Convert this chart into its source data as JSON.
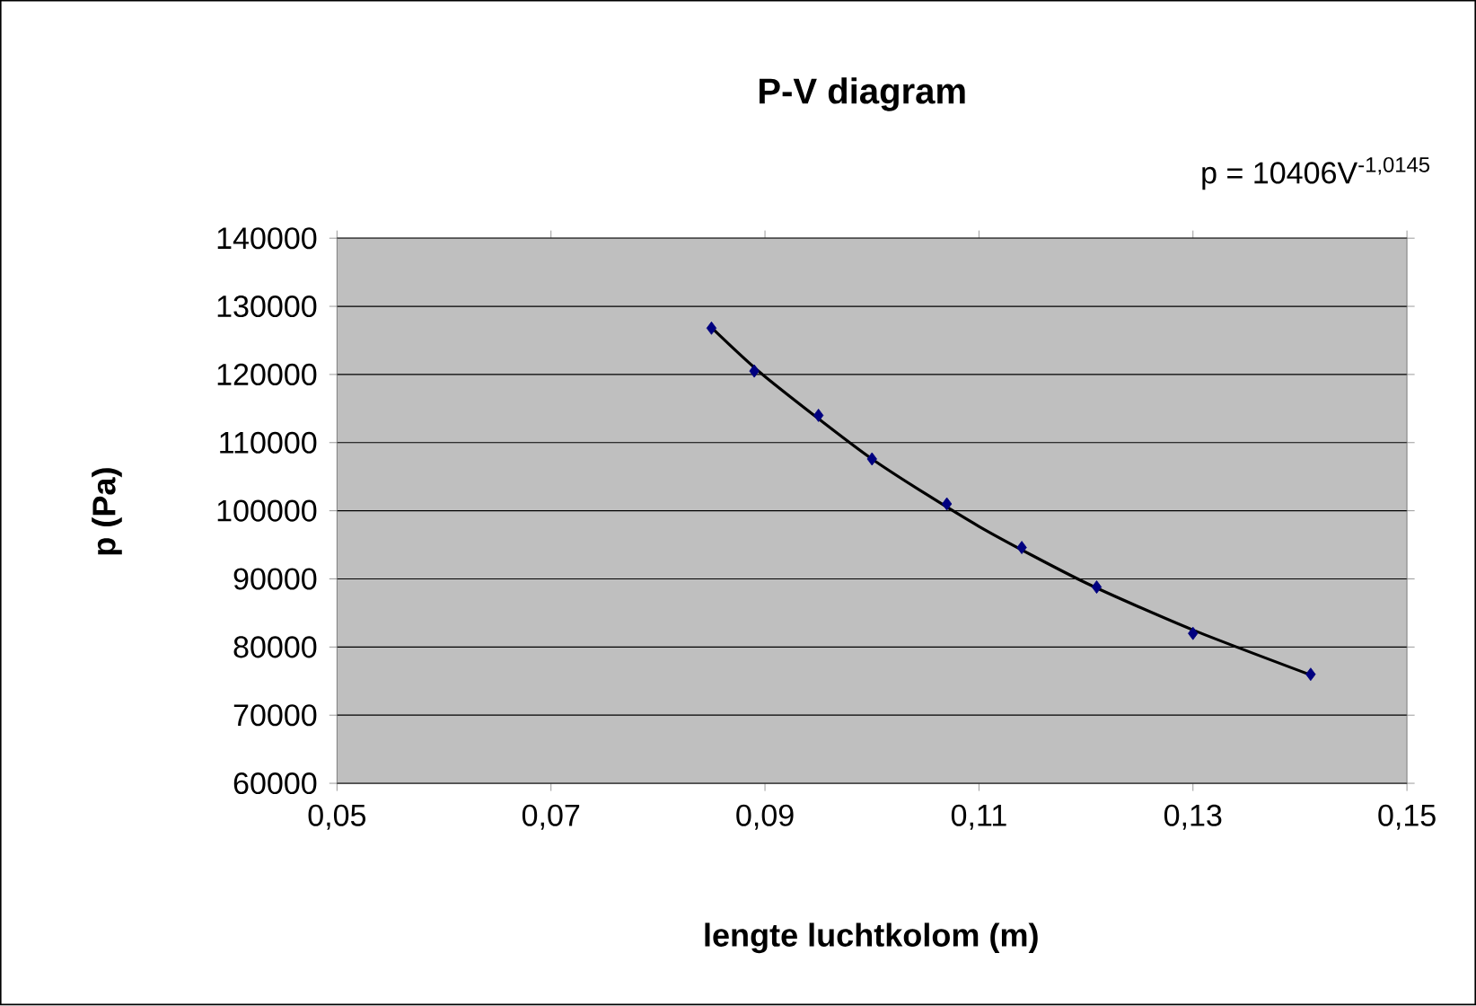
{
  "chart_data": {
    "type": "scatter",
    "title": "P-V diagram",
    "xlabel": "lengte luchtkolom (m)",
    "ylabel": "p (Pa)",
    "annotations": [
      "p = 10406V$^{-1,0145}$"
    ],
    "series": [
      {
        "type": "line",
        "color": "#000000",
        "marker": "none",
        "x": [
          0.085,
          0.09,
          0.1,
          0.11,
          0.12,
          0.13,
          0.141
        ],
        "values": [
          126900,
          119700,
          107600,
          97700,
          89400,
          82500,
          75900
        ]
      },
      {
        "color": "#000080",
        "marker": "diamond",
        "x": [
          0.085,
          0.089,
          0.095,
          0.1,
          0.107,
          0.114,
          0.121,
          0.13,
          0.141
        ],
        "values": [
          126800,
          120500,
          114000,
          107600,
          101000,
          94600,
          88800,
          82000,
          76000
        ]
      }
    ],
    "xlim": [
      0.05,
      0.15
    ],
    "ylim": [
      60000,
      140000
    ],
    "xticks": [
      {
        "value": 0.05,
        "label": "0,05"
      },
      {
        "value": 0.07,
        "label": "0,07"
      },
      {
        "value": 0.09,
        "label": "0,09"
      },
      {
        "value": 0.11,
        "label": "0,11"
      },
      {
        "value": 0.13,
        "label": "0,13"
      },
      {
        "value": 0.15,
        "label": "0,15"
      }
    ],
    "yticks": [
      60000,
      70000,
      80000,
      90000,
      100000,
      110000,
      120000,
      130000,
      140000
    ],
    "grid": "y"
  }
}
